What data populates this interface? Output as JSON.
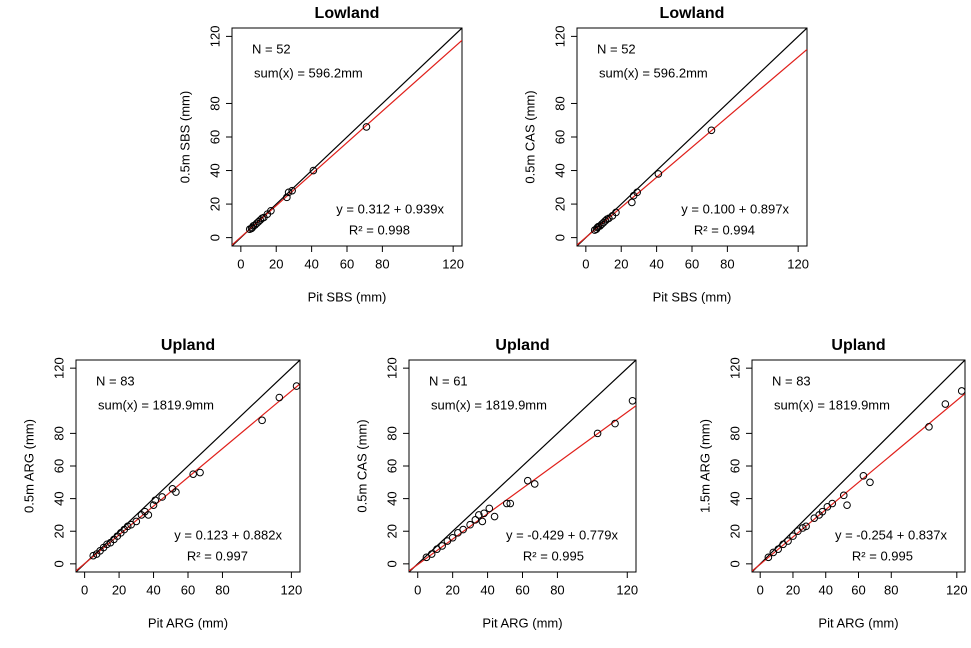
{
  "chart_data": [
    {
      "type": "scatter",
      "title": "Lowland",
      "xlabel": "Pit SBS (mm)",
      "ylabel": "0.5m SBS (mm)",
      "annotations": {
        "n": "N = 52",
        "sum": "sum(x) = 596.2mm",
        "equation": "y = 0.312 + 0.939x",
        "r2": "R² = 0.998"
      },
      "x": [
        5,
        6,
        6.5,
        7,
        8,
        9,
        10,
        11,
        12,
        13,
        15,
        17,
        26,
        27,
        29,
        41,
        71
      ],
      "values": [
        5,
        5.5,
        6,
        7,
        7.5,
        8.5,
        9.5,
        10.5,
        11.5,
        12,
        14,
        16,
        24,
        27,
        28,
        40,
        66
      ],
      "color": "#000000",
      "lines": [
        {
          "intercept": 0,
          "slope": 1,
          "color": "#000000"
        },
        {
          "intercept": 0.312,
          "slope": 0.939,
          "color": "#e0201b"
        }
      ],
      "xlim": [
        -5,
        125
      ],
      "ylim": [
        -5,
        125
      ],
      "xticks": [
        0,
        20,
        40,
        60,
        80,
        120
      ],
      "yticks": [
        0,
        20,
        40,
        60,
        80,
        120
      ]
    },
    {
      "type": "scatter",
      "title": "Lowland",
      "xlabel": "Pit SBS (mm)",
      "ylabel": "0.5m CAS (mm)",
      "annotations": {
        "n": "N = 52",
        "sum": "sum(x) = 596.2mm",
        "equation": "y = 0.100 + 0.897x",
        "r2": "R² = 0.994"
      },
      "x": [
        5,
        6,
        6.5,
        7,
        8,
        9,
        10,
        11,
        12,
        13,
        15,
        17,
        26,
        27,
        29,
        41,
        71
      ],
      "values": [
        4.5,
        5,
        6,
        6.5,
        7,
        8,
        9,
        10,
        11,
        11.5,
        13,
        15,
        21,
        25,
        27,
        38,
        64
      ],
      "color": "#000000",
      "lines": [
        {
          "intercept": 0,
          "slope": 1,
          "color": "#000000"
        },
        {
          "intercept": 0.1,
          "slope": 0.897,
          "color": "#e0201b"
        }
      ],
      "xlim": [
        -5,
        125
      ],
      "ylim": [
        -5,
        125
      ],
      "xticks": [
        0,
        20,
        40,
        60,
        80,
        120
      ],
      "yticks": [
        0,
        20,
        40,
        60,
        80,
        120
      ]
    },
    {
      "type": "scatter",
      "title": "Upland",
      "xlabel": "Pit ARG (mm)",
      "ylabel": "0.5m ARG (mm)",
      "annotations": {
        "n": "N = 83",
        "sum": "sum(x) = 1819.9mm",
        "equation": "y = 0.123 + 0.882x",
        "r2": "R² = 0.997"
      },
      "x": [
        5,
        7,
        9,
        11,
        13,
        15,
        17,
        19,
        21,
        23,
        25,
        27,
        30,
        33,
        35,
        37,
        40,
        41,
        45,
        51,
        53,
        63,
        67,
        103,
        113,
        123
      ],
      "values": [
        5,
        6,
        8,
        10,
        12,
        13,
        15,
        17,
        19,
        21,
        23,
        24,
        26,
        30,
        32,
        30,
        36,
        39,
        41,
        46,
        44,
        55,
        56,
        88,
        102,
        109
      ],
      "color": "#000000",
      "lines": [
        {
          "intercept": 0,
          "slope": 1,
          "color": "#000000"
        },
        {
          "intercept": 0.123,
          "slope": 0.882,
          "color": "#e0201b"
        }
      ],
      "xlim": [
        -5,
        125
      ],
      "ylim": [
        -5,
        125
      ],
      "xticks": [
        0,
        20,
        40,
        60,
        80,
        120
      ],
      "yticks": [
        0,
        20,
        40,
        60,
        80,
        120
      ]
    },
    {
      "type": "scatter",
      "title": "Upland",
      "xlabel": "Pit ARG (mm)",
      "ylabel": "0.5m CAS (mm)",
      "annotations": {
        "n": "N = 61",
        "sum": "sum(x) = 1819.9mm",
        "equation": "y = -0.429 + 0.779x",
        "r2": "R² = 0.995"
      },
      "x": [
        5,
        8,
        11,
        14,
        17,
        20,
        23,
        26,
        30,
        33,
        35,
        37,
        38,
        41,
        44,
        51,
        53,
        63,
        67,
        103,
        113,
        123
      ],
      "values": [
        4,
        6,
        9,
        11,
        14,
        16,
        19,
        21,
        24,
        27,
        30,
        26,
        31,
        34,
        29,
        37,
        37,
        51,
        49,
        80,
        86,
        100
      ],
      "color": "#000000",
      "lines": [
        {
          "intercept": 0,
          "slope": 1,
          "color": "#000000"
        },
        {
          "intercept": -0.429,
          "slope": 0.779,
          "color": "#e0201b"
        }
      ],
      "xlim": [
        -5,
        125
      ],
      "ylim": [
        -5,
        125
      ],
      "xticks": [
        0,
        20,
        40,
        60,
        80,
        120
      ],
      "yticks": [
        0,
        20,
        40,
        60,
        80,
        120
      ]
    },
    {
      "type": "scatter",
      "title": "Upland",
      "xlabel": "Pit ARG (mm)",
      "ylabel": "1.5m ARG (mm)",
      "annotations": {
        "n": "N = 83",
        "sum": "sum(x) = 1819.9mm",
        "equation": "y = -0.254 + 0.837x",
        "r2": "R² = 0.995"
      },
      "x": [
        5,
        8,
        11,
        14,
        17,
        20,
        23,
        26,
        28,
        33,
        36,
        38,
        41,
        44,
        51,
        53,
        63,
        67,
        103,
        113,
        123
      ],
      "values": [
        4,
        7,
        9,
        12,
        14,
        17,
        20,
        22,
        23,
        28,
        30,
        32,
        35,
        37,
        42,
        36,
        54,
        50,
        84,
        98,
        106
      ],
      "color": "#000000",
      "lines": [
        {
          "intercept": 0,
          "slope": 1,
          "color": "#000000"
        },
        {
          "intercept": -0.254,
          "slope": 0.837,
          "color": "#e0201b"
        }
      ],
      "xlim": [
        -5,
        125
      ],
      "ylim": [
        -5,
        125
      ],
      "xticks": [
        0,
        20,
        40,
        60,
        80,
        120
      ],
      "yticks": [
        0,
        20,
        40,
        60,
        80,
        120
      ]
    }
  ]
}
